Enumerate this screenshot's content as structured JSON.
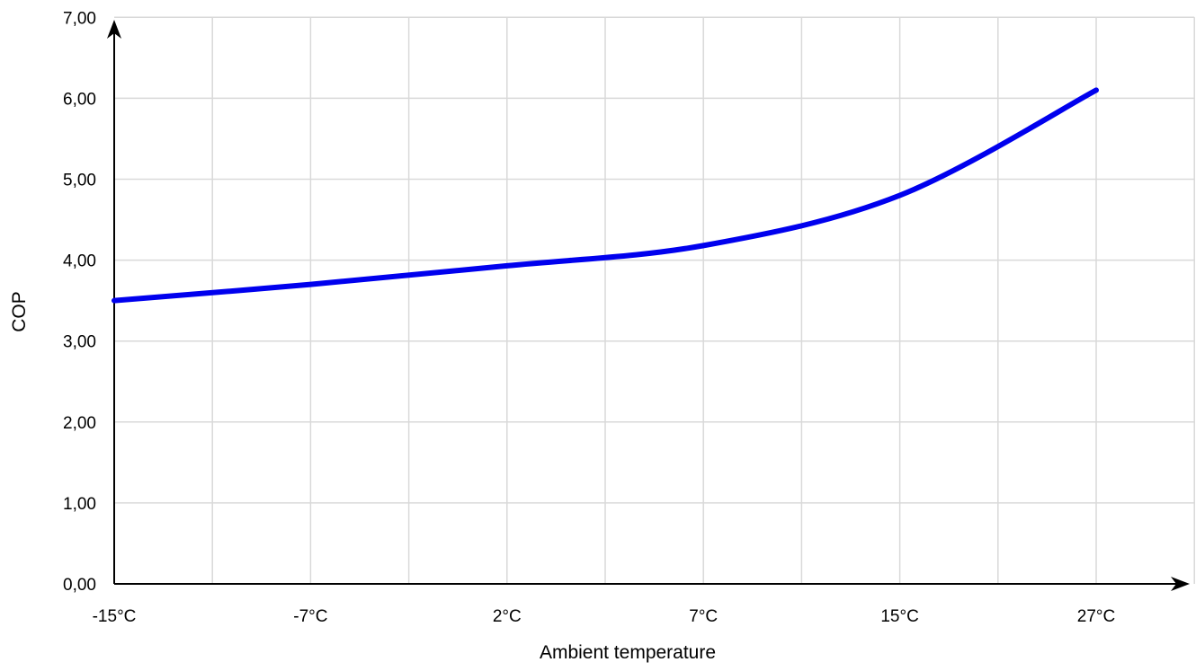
{
  "chart_data": {
    "type": "line",
    "title": "",
    "xlabel": "Ambient temperature",
    "ylabel": "COP",
    "x_tick_labels": [
      "-15°C",
      "-7°C",
      "2°C",
      "7°C",
      "15°C",
      "27°C"
    ],
    "y_tick_labels": [
      "0,00",
      "1,00",
      "2,00",
      "3,00",
      "4,00",
      "5,00",
      "6,00",
      "7,00"
    ],
    "ylim": [
      0,
      7
    ],
    "grid": true,
    "legend": "none",
    "series": [
      {
        "color": "#0000ee",
        "x": [
          "-15°C",
          "-7°C",
          "2°C",
          "7°C",
          "15°C",
          "27°C"
        ],
        "values": [
          3.5,
          3.7,
          3.93,
          4.18,
          4.8,
          6.1
        ]
      }
    ]
  }
}
